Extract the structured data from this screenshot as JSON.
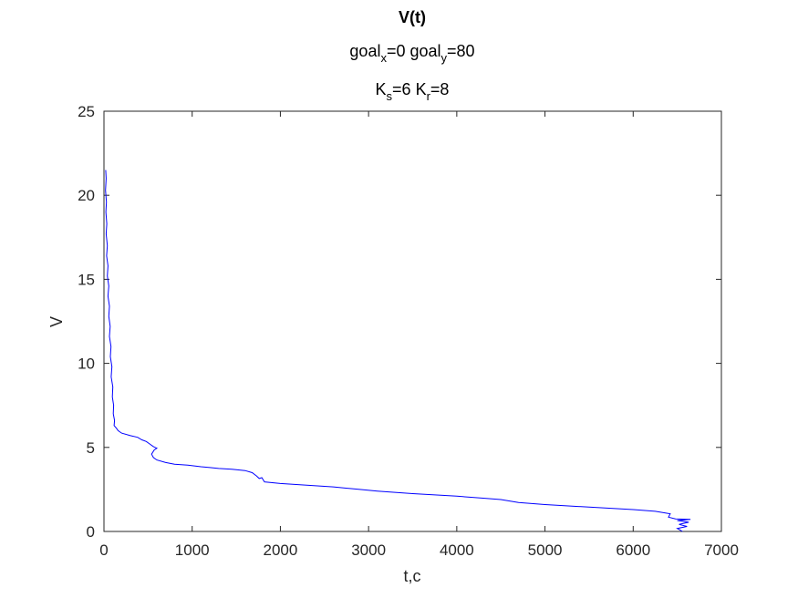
{
  "chart_data": {
    "type": "line",
    "title": "V(t)",
    "subtitle_lines": [
      [
        {
          "t": "goal"
        },
        {
          "sub": "x"
        },
        {
          "t": "=0  goal"
        },
        {
          "sub": "y"
        },
        {
          "t": "=80"
        }
      ],
      [
        {
          "t": "K"
        },
        {
          "sub": "s"
        },
        {
          "t": "=6  K"
        },
        {
          "sub": "r"
        },
        {
          "t": "=8"
        }
      ]
    ],
    "xlabel": "t,c",
    "ylabel": "V",
    "xlim": [
      0,
      7000
    ],
    "ylim": [
      0,
      25
    ],
    "xticks": [
      0,
      1000,
      2000,
      3000,
      4000,
      5000,
      6000,
      7000
    ],
    "yticks": [
      0,
      5,
      10,
      15,
      20,
      25
    ],
    "grid": false,
    "line_color": "#0000ff",
    "series": [
      {
        "x": [
          20,
          25,
          18,
          28,
          22,
          32,
          25,
          38,
          30,
          45,
          38,
          55,
          45,
          62,
          55,
          70,
          62,
          80,
          72,
          90,
          82,
          100,
          95,
          110,
          105,
          120,
          115,
          140,
          160,
          200,
          300,
          380,
          430,
          480,
          520,
          560,
          600,
          570,
          540,
          560,
          600,
          700,
          800,
          950,
          1100,
          1200,
          1300,
          1450,
          1600,
          1680,
          1730,
          1760,
          1790,
          1820,
          2000,
          2300,
          2600,
          2900,
          3100,
          3500,
          4000,
          4300,
          4500,
          4700,
          5000,
          5500,
          6000,
          6250,
          6420,
          6400,
          6480,
          6650,
          6500,
          6630,
          6520,
          6610,
          6500,
          6560
        ],
        "y": [
          21.5,
          21.0,
          20.3,
          19.6,
          19.0,
          18.3,
          17.7,
          17.0,
          16.4,
          15.8,
          15.2,
          14.6,
          14.0,
          13.4,
          12.8,
          12.2,
          11.6,
          11.0,
          10.4,
          9.8,
          9.2,
          8.6,
          8.0,
          7.5,
          7.0,
          6.6,
          6.3,
          6.15,
          6.0,
          5.85,
          5.7,
          5.6,
          5.45,
          5.35,
          5.2,
          5.05,
          4.95,
          4.85,
          4.6,
          4.4,
          4.25,
          4.1,
          4.0,
          3.95,
          3.85,
          3.8,
          3.75,
          3.7,
          3.62,
          3.5,
          3.3,
          3.15,
          3.2,
          2.95,
          2.85,
          2.75,
          2.65,
          2.5,
          2.4,
          2.25,
          2.1,
          1.98,
          1.9,
          1.72,
          1.6,
          1.45,
          1.3,
          1.2,
          1.05,
          0.85,
          0.75,
          0.72,
          0.65,
          0.55,
          0.42,
          0.3,
          0.18,
          0.0
        ]
      }
    ]
  }
}
